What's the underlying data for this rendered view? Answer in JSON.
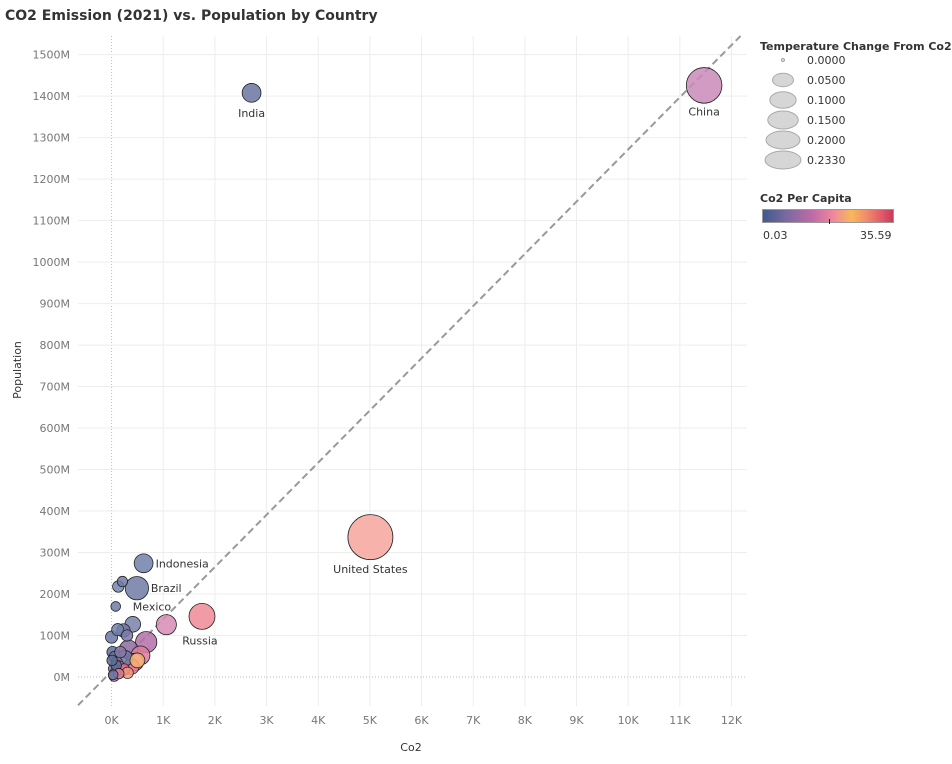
{
  "chart_data": {
    "type": "scatter",
    "title": "CO2 Emission (2021) vs. Population by Country",
    "xlabel": "Co2",
    "ylabel": "Population",
    "xlim": [
      -650,
      12300
    ],
    "ylim": [
      -70,
      1545
    ],
    "x_ticks": [
      0,
      1000,
      2000,
      3000,
      4000,
      5000,
      6000,
      7000,
      8000,
      9000,
      10000,
      11000,
      12000
    ],
    "x_tick_labels": [
      "0K",
      "1K",
      "2K",
      "3K",
      "4K",
      "5K",
      "6K",
      "7K",
      "8K",
      "9K",
      "10K",
      "11K",
      "12K"
    ],
    "y_ticks": [
      0,
      100,
      200,
      300,
      400,
      500,
      600,
      700,
      800,
      900,
      1000,
      1100,
      1200,
      1300,
      1400,
      1500
    ],
    "y_tick_labels": [
      "0M",
      "100M",
      "200M",
      "300M",
      "400M",
      "500M",
      "600M",
      "700M",
      "800M",
      "900M",
      "1000M",
      "1100M",
      "1200M",
      "1300M",
      "1400M",
      "1500M"
    ],
    "y_unit": "millions",
    "grid": true,
    "reference_line": {
      "slope": 0.1258,
      "intercept": 13.5,
      "style": "dashed",
      "color": "#999999"
    },
    "size_legend": {
      "title": "Temperature Change From Co2",
      "values": [
        "0.0000",
        "0.0500",
        "0.1000",
        "0.1500",
        "0.2000",
        "0.2330"
      ]
    },
    "color_legend": {
      "title": "Co2 Per Capita",
      "min_label": "0.03",
      "max_label": "35.59",
      "min": 0.03,
      "max": 35.59,
      "placement": "right"
    },
    "points": [
      {
        "label": "China",
        "x": 11470,
        "y": 1426,
        "temp": 0.13,
        "color": "#c98ab8"
      },
      {
        "label": "India",
        "x": 2710,
        "y": 1408,
        "temp": 0.02,
        "color": "#6a75a0"
      },
      {
        "label": "United States",
        "x": 5010,
        "y": 337,
        "temp": 0.233,
        "color": "#f7a59d"
      },
      {
        "label": "Russia",
        "x": 1750,
        "y": 146,
        "temp": 0.055,
        "color": "#ef8a96"
      },
      {
        "label": "Indonesia",
        "x": 620,
        "y": 274,
        "temp": 0.02,
        "color": "#7080aa"
      },
      {
        "label": "Brazil",
        "x": 490,
        "y": 214,
        "temp": 0.04,
        "color": "#6e7ba6"
      },
      {
        "label": "Mexico",
        "x": 410,
        "y": 127,
        "temp": 0.01,
        "color": "#7a80ab"
      },
      {
        "label": "",
        "x": 1060,
        "y": 126,
        "temp": 0.025,
        "color": "#d78cb5"
      },
      {
        "label": "",
        "x": 670,
        "y": 84,
        "temp": 0.03,
        "color": "#b36fa8"
      },
      {
        "label": "",
        "x": 330,
        "y": 66,
        "temp": 0.02,
        "color": "#8e6aa0"
      },
      {
        "label": "",
        "x": 560,
        "y": 52,
        "temp": 0.02,
        "color": "#e07a9e"
      },
      {
        "label": "",
        "x": 450,
        "y": 36,
        "temp": 0.015,
        "color": "#f4a07c"
      },
      {
        "label": "",
        "x": 380,
        "y": 25,
        "temp": 0.01,
        "color": "#e8728a"
      },
      {
        "label": "",
        "x": 260,
        "y": 45,
        "temp": 0.01,
        "color": "#6f78a3"
      },
      {
        "label": "",
        "x": 230,
        "y": 112,
        "temp": 0.005,
        "color": "#6f7aa6"
      },
      {
        "label": "",
        "x": 0,
        "y": 96,
        "temp": 0.003,
        "color": "#6a78a6"
      },
      {
        "label": "",
        "x": 300,
        "y": 100,
        "temp": 0.002,
        "color": "#7a78a8"
      },
      {
        "label": "",
        "x": 120,
        "y": 114,
        "temp": 0.003,
        "color": "#6f80ac"
      },
      {
        "label": "",
        "x": 130,
        "y": 218,
        "temp": 0.002,
        "color": "#7485ae"
      },
      {
        "label": "",
        "x": 210,
        "y": 230,
        "temp": 0.001,
        "color": "#6f7ba6"
      },
      {
        "label": "",
        "x": 80,
        "y": 170,
        "temp": 0.0005,
        "color": "#6f7ba6"
      },
      {
        "label": "",
        "x": 20,
        "y": 60,
        "temp": 0.002,
        "color": "#5f6d99"
      },
      {
        "label": "",
        "x": 60,
        "y": 48,
        "temp": 0.002,
        "color": "#6a78a6"
      },
      {
        "label": "",
        "x": 100,
        "y": 35,
        "temp": 0.002,
        "color": "#7a78a8"
      },
      {
        "label": "",
        "x": 150,
        "y": 25,
        "temp": 0.002,
        "color": "#b56ea6"
      },
      {
        "label": "",
        "x": 200,
        "y": 15,
        "temp": 0.002,
        "color": "#d37aa4"
      },
      {
        "label": "",
        "x": 40,
        "y": 20,
        "temp": 0.001,
        "color": "#6a78a6"
      },
      {
        "label": "",
        "x": 70,
        "y": 10,
        "temp": 0.001,
        "color": "#9a6fa6"
      },
      {
        "label": "",
        "x": 30,
        "y": 5,
        "temp": 0.0005,
        "color": "#6a78a6"
      },
      {
        "label": "",
        "x": 90,
        "y": 28,
        "temp": 0.001,
        "color": "#5f6d99"
      },
      {
        "label": "",
        "x": 170,
        "y": 60,
        "temp": 0.002,
        "color": "#8a78a8"
      },
      {
        "label": "",
        "x": 240,
        "y": 18,
        "temp": 0.002,
        "color": "#e2708c"
      },
      {
        "label": "",
        "x": 310,
        "y": 10,
        "temp": 0.002,
        "color": "#f2967c"
      },
      {
        "label": "",
        "x": 500,
        "y": 40,
        "temp": 0.008,
        "color": "#f6b27a"
      },
      {
        "label": "",
        "x": 10,
        "y": 40,
        "temp": 0.001,
        "color": "#5f6d99"
      },
      {
        "label": "",
        "x": 50,
        "y": 2,
        "temp": 0.001,
        "color": "#c07aa8"
      },
      {
        "label": "",
        "x": 140,
        "y": 8,
        "temp": 0.001,
        "color": "#e08098"
      }
    ]
  }
}
